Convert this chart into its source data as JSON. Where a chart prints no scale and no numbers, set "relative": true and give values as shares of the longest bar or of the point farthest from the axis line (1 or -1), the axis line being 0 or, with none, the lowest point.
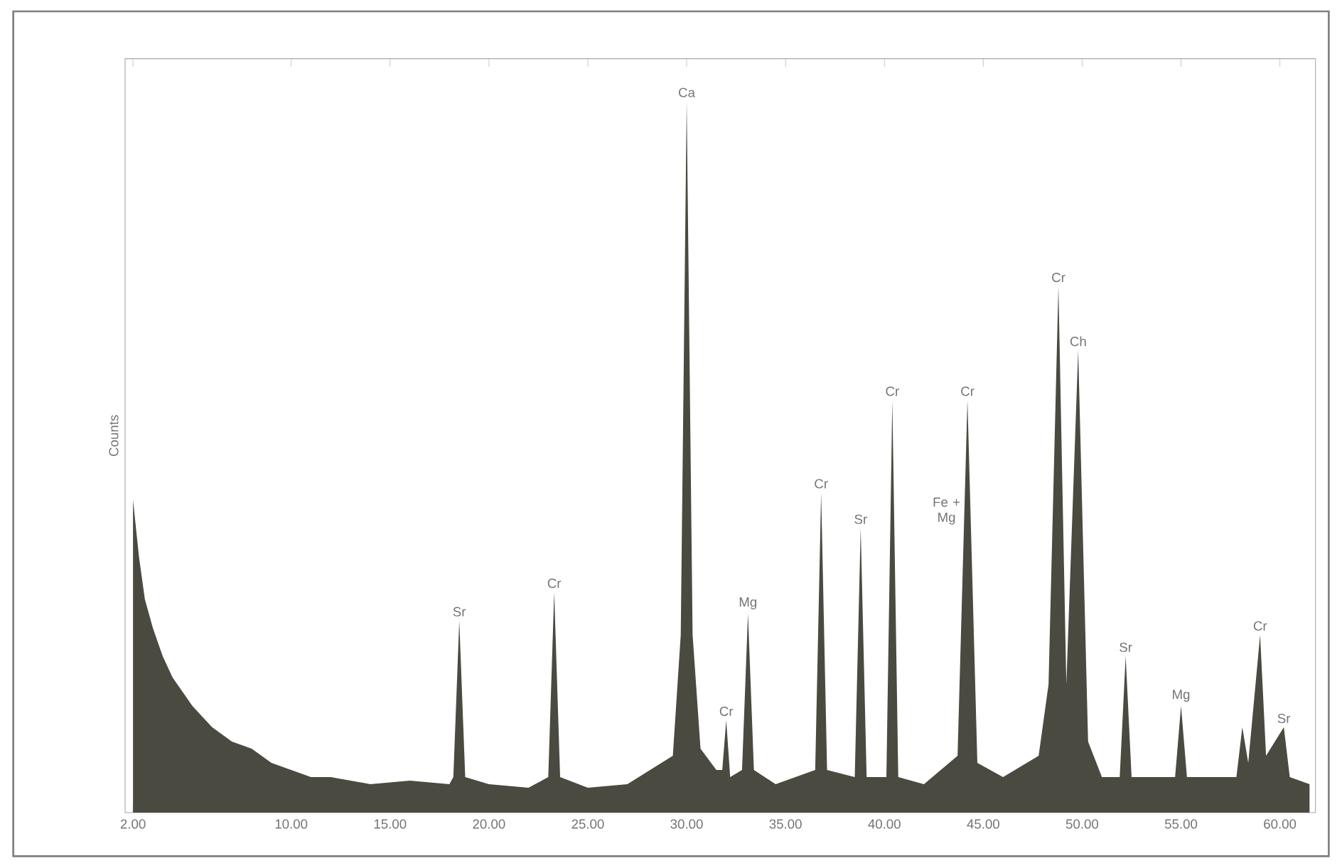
{
  "chart_data": {
    "type": "area",
    "relative": true,
    "ylabel": "Counts",
    "color": "#4a4a40",
    "x": [
      2,
      2.3,
      2.6,
      3,
      3.5,
      4,
      4.5,
      5,
      6,
      7,
      8,
      9,
      10,
      11,
      12,
      14,
      16,
      18,
      18.2,
      18.5,
      18.8,
      20,
      22,
      23.0,
      23.3,
      23.6,
      25,
      27,
      29.3,
      29.7,
      30.0,
      30.3,
      30.7,
      31.5,
      31.8,
      32.0,
      32.2,
      32.8,
      33.1,
      33.4,
      34.5,
      36.5,
      36.8,
      37.1,
      38.5,
      38.8,
      39.1,
      40.1,
      40.4,
      40.7,
      42,
      43.7,
      44.2,
      44.7,
      46,
      47.8,
      48.3,
      48.8,
      49.2,
      49.8,
      50.3,
      51.0,
      51.9,
      52.2,
      52.5,
      54.7,
      55.0,
      55.3,
      57.8,
      58.1,
      58.4,
      59.0,
      59.3,
      60.2,
      60.5,
      61.5
    ],
    "values": [
      0.44,
      0.36,
      0.3,
      0.26,
      0.22,
      0.19,
      0.17,
      0.15,
      0.12,
      0.1,
      0.09,
      0.07,
      0.06,
      0.05,
      0.05,
      0.04,
      0.045,
      0.04,
      0.05,
      0.27,
      0.05,
      0.04,
      0.035,
      0.05,
      0.31,
      0.05,
      0.035,
      0.04,
      0.08,
      0.25,
      1.0,
      0.25,
      0.09,
      0.06,
      0.06,
      0.13,
      0.05,
      0.06,
      0.28,
      0.06,
      0.04,
      0.06,
      0.45,
      0.06,
      0.05,
      0.4,
      0.05,
      0.05,
      0.58,
      0.05,
      0.04,
      0.08,
      0.58,
      0.07,
      0.05,
      0.08,
      0.18,
      0.74,
      0.18,
      0.65,
      0.1,
      0.05,
      0.05,
      0.22,
      0.05,
      0.05,
      0.15,
      0.05,
      0.05,
      0.12,
      0.07,
      0.25,
      0.08,
      0.12,
      0.05,
      0.04
    ],
    "xlim": [
      1.6,
      61.8
    ],
    "xticks": [
      {
        "value": 2,
        "label": "2.00"
      },
      {
        "value": 10,
        "label": "10.00"
      },
      {
        "value": 15,
        "label": "15.00"
      },
      {
        "value": 20,
        "label": "20.00"
      },
      {
        "value": 25,
        "label": "25.00"
      },
      {
        "value": 30,
        "label": "30.00"
      },
      {
        "value": 35,
        "label": "35.00"
      },
      {
        "value": 40,
        "label": "40.00"
      },
      {
        "value": 45,
        "label": "45.00"
      },
      {
        "value": 50,
        "label": "50.00"
      },
      {
        "value": 55,
        "label": "55.00"
      },
      {
        "value": 60,
        "label": "60.00"
      }
    ],
    "annotations": [
      {
        "text": "Sr",
        "x": 18.5,
        "y": 0.27
      },
      {
        "text": "Cr",
        "x": 23.3,
        "y": 0.31
      },
      {
        "text": "Ca",
        "x": 30.0,
        "y": 1.0
      },
      {
        "text": "Cr",
        "x": 32.0,
        "y": 0.13
      },
      {
        "text": "Mg",
        "x": 33.1,
        "y": 0.28
      },
      {
        "text": "Cr",
        "x": 36.8,
        "y": 0.45
      },
      {
        "text": "Sr",
        "x": 38.8,
        "y": 0.4
      },
      {
        "text": "Cr",
        "x": 40.4,
        "y": 0.58
      },
      {
        "text": "Cr",
        "x": 44.2,
        "y": 0.58
      },
      "Fe + Mg",
      {
        "text": "Cr",
        "x": 48.8,
        "y": 0.74
      },
      {
        "text": "Ch",
        "x": 49.8,
        "y": 0.65
      },
      {
        "text": "Sr",
        "x": 52.2,
        "y": 0.22
      },
      {
        "text": "Mg",
        "x": 55.0,
        "y": 0.15
      },
      {
        "text": "Cr",
        "x": 59.0,
        "y": 0.25
      },
      {
        "text": "Sr",
        "x": 60.2,
        "y": 0.12
      }
    ]
  }
}
